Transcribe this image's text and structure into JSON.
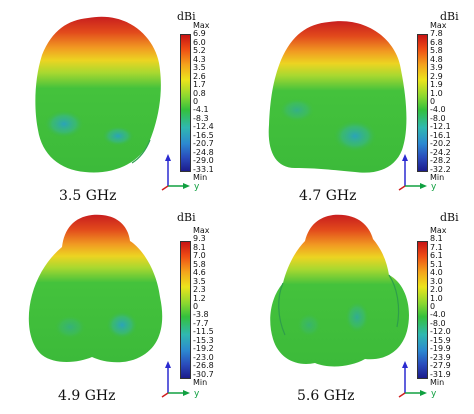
{
  "panels": [
    {
      "freq": "3.5 GHz",
      "unit": "dBi",
      "scale": [
        "Max",
        "6.9",
        "6.0",
        "5.2",
        "4.3",
        "3.5",
        "2.6",
        "1.7",
        "0.8",
        "0",
        "-4.1",
        "-8.3",
        "-12.4",
        "-16.5",
        "-20.7",
        "-24.8",
        "-29.0",
        "-33.1",
        "Min"
      ],
      "axis_label": "y"
    },
    {
      "freq": "4.7 GHz",
      "unit": "dBi",
      "scale": [
        "Max",
        "7.8",
        "6.8",
        "5.8",
        "4.8",
        "3.9",
        "2.9",
        "1.9",
        "1.0",
        "0",
        "-4.0",
        "-8.0",
        "-12.1",
        "-16.1",
        "-20.2",
        "-24.2",
        "-28.2",
        "-32.2",
        "Min"
      ],
      "axis_label": "y"
    },
    {
      "freq": "4.9 GHz",
      "unit": "dBi",
      "scale": [
        "Max",
        "9.3",
        "8.1",
        "7.0",
        "5.8",
        "4.6",
        "3.5",
        "2.3",
        "1.2",
        "0",
        "-3.8",
        "-7.7",
        "-11.5",
        "-15.3",
        "-19.2",
        "-23.0",
        "-26.8",
        "-30.7",
        "Min"
      ],
      "axis_label": "y"
    },
    {
      "freq": "5.6 GHz",
      "unit": "dBi",
      "scale": [
        "Max",
        "8.1",
        "7.1",
        "6.1",
        "5.1",
        "4.0",
        "3.0",
        "2.0",
        "1.0",
        "0",
        "-4.0",
        "-8.0",
        "-12.0",
        "-15.9",
        "-19.9",
        "-23.9",
        "-27.9",
        "-31.9",
        "Min"
      ],
      "axis_label": "y"
    }
  ],
  "colors": {
    "hot": "#d7201e",
    "warm": "#f0a020",
    "yellow": "#e8e020",
    "green": "#3ec03a",
    "cyan": "#30a8c8",
    "blue": "#1c2c98"
  }
}
